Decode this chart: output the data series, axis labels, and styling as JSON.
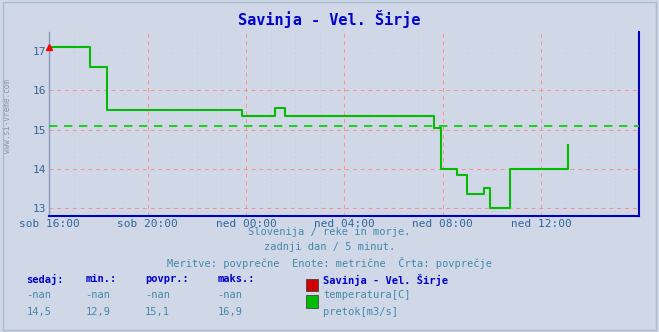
{
  "title": "Savinja - Vel. Širje",
  "title_color": "#0000cc",
  "background_color": "#d0d8e8",
  "plot_background": "#d0d8e8",
  "xlabel_ticks": [
    "sob 16:00",
    "sob 20:00",
    "ned 00:00",
    "ned 04:00",
    "ned 08:00",
    "ned 12:00"
  ],
  "yticks": [
    13,
    14,
    15,
    16,
    17
  ],
  "ylim": [
    12.8,
    17.5
  ],
  "xlim": [
    0,
    288
  ],
  "x_tick_positions": [
    0,
    48,
    96,
    144,
    192,
    240
  ],
  "avg_line_value": 15.1,
  "avg_line_color": "#00cc00",
  "red_grid_lines": [
    13,
    14,
    15,
    16
  ],
  "grid_color_major": "#ff9090",
  "grid_color_minor": "#c8ccd8",
  "line_color": "#00bb00",
  "line_width": 1.5,
  "watermark": "www.si-vreme.com",
  "subtitle1": "Slovenija / reke in morje.",
  "subtitle2": "zadnji dan / 5 minut.",
  "subtitle3": "Meritve: povprečne  Enote: metrične  Črta: povprečje",
  "subtitle_color": "#4488aa",
  "legend_title": "Savinja - Vel. Širje",
  "legend_items": [
    {
      "label": "temperatura[C]",
      "color": "#cc0000"
    },
    {
      "label": "pretok[m3/s]",
      "color": "#00bb00"
    }
  ],
  "table_headers": [
    "sedaj:",
    "min.:",
    "povpr.:",
    "maks.:"
  ],
  "table_row1": [
    "-nan",
    "-nan",
    "-nan",
    "-nan"
  ],
  "table_row2": [
    "14,5",
    "12,9",
    "15,1",
    "16,9"
  ],
  "table_color": "#4488aa",
  "table_bold_color": "#0000cc",
  "green_data": [
    17.1,
    17.1,
    17.1,
    17.1,
    17.1,
    17.1,
    17.1,
    17.1,
    17.1,
    17.1,
    17.1,
    17.1,
    17.1,
    17.1,
    17.1,
    17.1,
    17.1,
    17.1,
    17.1,
    17.1,
    16.6,
    16.6,
    16.6,
    16.6,
    16.6,
    16.6,
    16.6,
    16.6,
    15.5,
    15.5,
    15.5,
    15.5,
    15.5,
    15.5,
    15.5,
    15.5,
    15.5,
    15.5,
    15.5,
    15.5,
    15.5,
    15.5,
    15.5,
    15.5,
    15.5,
    15.5,
    15.5,
    15.5,
    15.5,
    15.5,
    15.5,
    15.5,
    15.5,
    15.5,
    15.5,
    15.5,
    15.5,
    15.5,
    15.5,
    15.5,
    15.5,
    15.5,
    15.5,
    15.5,
    15.5,
    15.5,
    15.5,
    15.5,
    15.5,
    15.5,
    15.5,
    15.5,
    15.5,
    15.5,
    15.5,
    15.5,
    15.5,
    15.5,
    15.5,
    15.5,
    15.5,
    15.5,
    15.5,
    15.5,
    15.5,
    15.5,
    15.5,
    15.5,
    15.5,
    15.5,
    15.5,
    15.5,
    15.5,
    15.5,
    15.35,
    15.35,
    15.35,
    15.35,
    15.35,
    15.35,
    15.35,
    15.35,
    15.35,
    15.35,
    15.35,
    15.35,
    15.35,
    15.35,
    15.35,
    15.35,
    15.55,
    15.55,
    15.55,
    15.55,
    15.55,
    15.35,
    15.35,
    15.35,
    15.35,
    15.35,
    15.35,
    15.35,
    15.35,
    15.35,
    15.35,
    15.35,
    15.35,
    15.35,
    15.35,
    15.35,
    15.35,
    15.35,
    15.35,
    15.35,
    15.35,
    15.35,
    15.35,
    15.35,
    15.35,
    15.35,
    15.35,
    15.35,
    15.35,
    15.35,
    15.35,
    15.35,
    15.35,
    15.35,
    15.35,
    15.35,
    15.35,
    15.35,
    15.35,
    15.35,
    15.35,
    15.35,
    15.35,
    15.35,
    15.35,
    15.35,
    15.35,
    15.35,
    15.35,
    15.35,
    15.35,
    15.35,
    15.35,
    15.35,
    15.35,
    15.35,
    15.35,
    15.35,
    15.35,
    15.35,
    15.35,
    15.35,
    15.35,
    15.35,
    15.35,
    15.35,
    15.35,
    15.35,
    15.35,
    15.35,
    15.35,
    15.35,
    15.35,
    15.35,
    15.05,
    15.05,
    15.05,
    14.0,
    14.0,
    14.0,
    14.0,
    14.0,
    14.0,
    14.0,
    14.0,
    13.85,
    13.85,
    13.85,
    13.85,
    13.85,
    13.35,
    13.35,
    13.35,
    13.35,
    13.35,
    13.35,
    13.35,
    13.35,
    13.5,
    13.5,
    13.5,
    13.0,
    13.0,
    13.0,
    13.0,
    13.0,
    13.0,
    13.0,
    13.0,
    13.0,
    13.0,
    14.0,
    14.0,
    14.0,
    14.0,
    14.0,
    14.0,
    14.0,
    14.0,
    14.0,
    14.0,
    14.0,
    14.0,
    14.0,
    14.0,
    14.0,
    14.0,
    14.0,
    14.0,
    14.0,
    14.0,
    14.0,
    14.0,
    14.0,
    14.0,
    14.0,
    14.0,
    14.0,
    14.0,
    14.6
  ],
  "minor_x_positions": [
    12,
    24,
    36,
    60,
    72,
    84,
    108,
    120,
    132,
    156,
    168,
    180,
    204,
    216,
    228,
    252,
    264,
    276
  ]
}
